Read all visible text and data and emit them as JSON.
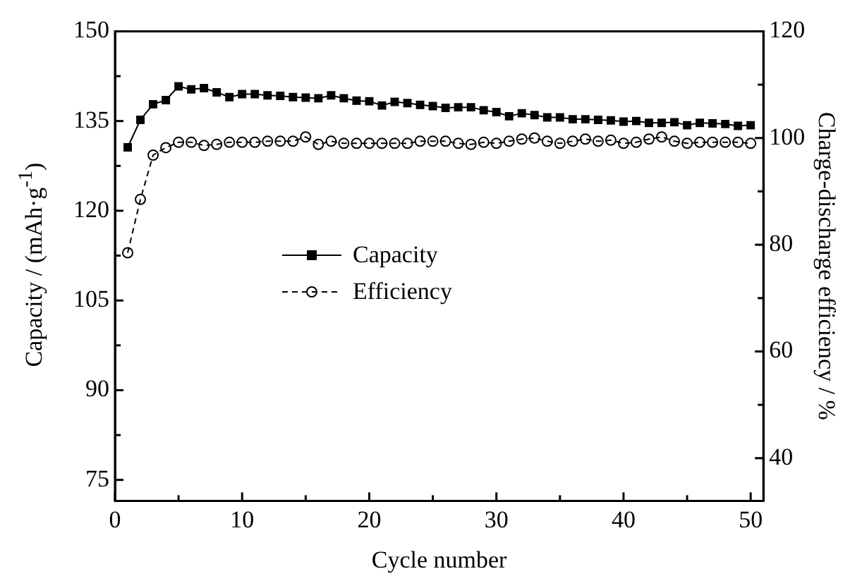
{
  "chart_data": {
    "type": "line",
    "xlabel": "Cycle number",
    "ylabel": "Capacity / (mAh·g$^{-1}$)",
    "y2label": "Charge-discharge efficiency / %",
    "x": [
      1,
      2,
      3,
      4,
      5,
      6,
      7,
      8,
      9,
      10,
      11,
      12,
      13,
      14,
      15,
      16,
      17,
      18,
      19,
      20,
      21,
      22,
      23,
      24,
      25,
      26,
      27,
      28,
      29,
      30,
      31,
      32,
      33,
      34,
      35,
      36,
      37,
      38,
      39,
      40,
      41,
      42,
      43,
      44,
      45,
      46,
      47,
      48,
      49,
      50
    ],
    "xlim": [
      0,
      51
    ],
    "xticks": [
      0,
      {
        "value": 5,
        "label": null
      },
      10,
      {
        "value": 15,
        "label": null
      },
      20,
      {
        "value": 25,
        "label": null
      },
      30,
      {
        "value": 35,
        "label": null
      },
      40,
      {
        "value": 45,
        "label": null
      },
      50
    ],
    "ylim": [
      71.5,
      150
    ],
    "yticks": [
      75,
      {
        "value": 82.5,
        "label": null
      },
      90,
      {
        "value": 97.5,
        "label": null
      },
      105,
      {
        "value": 112.5,
        "label": null
      },
      120,
      {
        "value": 127.5,
        "label": null
      },
      135,
      {
        "value": 142.5,
        "label": null
      },
      150
    ],
    "y2lim": [
      32,
      120
    ],
    "y2ticks": [
      40,
      {
        "value": 50,
        "label": null
      },
      60,
      {
        "value": 70,
        "label": null
      },
      80,
      {
        "value": 90,
        "label": null
      },
      100,
      {
        "value": 110,
        "label": null
      },
      120
    ],
    "legend": "left",
    "grid": false,
    "series": [
      {
        "name": "Capacity",
        "color": "#000000",
        "marker": "square",
        "line_style": "solid",
        "values": [
          130.6,
          135.2,
          137.8,
          138.5,
          140.8,
          140.3,
          140.5,
          139.8,
          139.0,
          139.5,
          139.5,
          139.3,
          139.2,
          139.0,
          138.9,
          138.8,
          139.3,
          138.8,
          138.4,
          138.3,
          137.6,
          138.2,
          138.0,
          137.7,
          137.5,
          137.2,
          137.3,
          137.3,
          136.8,
          136.5,
          135.8,
          136.3,
          136.0,
          135.6,
          135.6,
          135.3,
          135.3,
          135.2,
          135.1,
          134.9,
          135.0,
          134.7,
          134.7,
          134.8,
          134.3,
          134.7,
          134.6,
          134.5,
          134.2,
          134.3
        ]
      },
      {
        "name": "Efficiency",
        "color": "#000000",
        "marker": "circle",
        "line_style": "dashed",
        "axis": "y2",
        "values": [
          78.5,
          88.5,
          96.8,
          98.2,
          99.2,
          99.2,
          98.6,
          98.8,
          99.2,
          99.2,
          99.2,
          99.4,
          99.4,
          99.4,
          100.2,
          98.8,
          99.4,
          99.0,
          99.0,
          99.0,
          99.0,
          99.0,
          99.0,
          99.4,
          99.4,
          99.4,
          99.0,
          98.8,
          99.2,
          99.0,
          99.4,
          99.8,
          100.0,
          99.4,
          99.0,
          99.4,
          99.8,
          99.4,
          99.6,
          99.0,
          99.2,
          99.8,
          100.2,
          99.4,
          99.0,
          99.2,
          99.2,
          99.2,
          99.2,
          99.0
        ]
      }
    ]
  }
}
